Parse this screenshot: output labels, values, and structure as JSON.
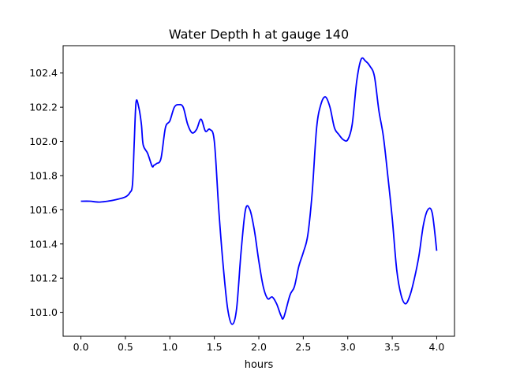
{
  "chart_data": {
    "type": "line",
    "title": "Water Depth h at gauge 140",
    "xlabel": "hours",
    "ylabel": "",
    "xlim": [
      -0.2,
      4.2
    ],
    "ylim": [
      100.86,
      102.56
    ],
    "grid": false,
    "xticks": [
      0.0,
      0.5,
      1.0,
      1.5,
      2.0,
      2.5,
      3.0,
      3.5,
      4.0
    ],
    "xtick_labels": [
      "0.0",
      "0.5",
      "1.0",
      "1.5",
      "2.0",
      "2.5",
      "3.0",
      "3.5",
      "4.0"
    ],
    "yticks": [
      101.0,
      101.2,
      101.4,
      101.6,
      101.8,
      102.0,
      102.2,
      102.4
    ],
    "ytick_labels": [
      "101.0",
      "101.2",
      "101.4",
      "101.6",
      "101.8",
      "102.0",
      "102.2",
      "102.4"
    ],
    "series": [
      {
        "color": "#0000ff",
        "x": [
          0.0,
          0.1,
          0.2,
          0.3,
          0.4,
          0.5,
          0.55,
          0.58,
          0.6,
          0.62,
          0.65,
          0.68,
          0.7,
          0.75,
          0.8,
          0.82,
          0.85,
          0.9,
          0.95,
          1.0,
          1.05,
          1.1,
          1.15,
          1.2,
          1.25,
          1.3,
          1.35,
          1.4,
          1.45,
          1.5,
          1.55,
          1.6,
          1.65,
          1.7,
          1.75,
          1.8,
          1.85,
          1.9,
          1.95,
          2.0,
          2.05,
          2.1,
          2.15,
          2.2,
          2.25,
          2.28,
          2.35,
          2.4,
          2.45,
          2.5,
          2.55,
          2.6,
          2.65,
          2.7,
          2.75,
          2.8,
          2.85,
          2.9,
          2.95,
          3.0,
          3.05,
          3.1,
          3.15,
          3.2,
          3.25,
          3.3,
          3.35,
          3.4,
          3.45,
          3.5,
          3.55,
          3.6,
          3.65,
          3.7,
          3.75,
          3.8,
          3.85,
          3.9,
          3.95,
          4.0
        ],
        "y": [
          101.65,
          101.65,
          101.645,
          101.65,
          101.66,
          101.675,
          101.7,
          101.75,
          102.0,
          102.23,
          102.2,
          102.1,
          101.98,
          101.93,
          101.855,
          101.86,
          101.87,
          101.9,
          102.08,
          102.12,
          102.2,
          102.215,
          102.2,
          102.1,
          102.05,
          102.07,
          102.13,
          102.06,
          102.07,
          102.0,
          101.6,
          101.27,
          101.02,
          100.93,
          101.02,
          101.35,
          101.6,
          101.6,
          101.48,
          101.3,
          101.15,
          101.08,
          101.09,
          101.05,
          100.98,
          100.97,
          101.1,
          101.15,
          101.27,
          101.35,
          101.45,
          101.7,
          102.08,
          102.22,
          102.26,
          102.2,
          102.08,
          102.04,
          102.01,
          102.01,
          102.1,
          102.35,
          102.48,
          102.47,
          102.44,
          102.38,
          102.18,
          102.03,
          101.8,
          101.55,
          101.25,
          101.1,
          101.05,
          101.1,
          101.2,
          101.33,
          101.51,
          101.6,
          101.58,
          101.36
        ]
      }
    ]
  }
}
